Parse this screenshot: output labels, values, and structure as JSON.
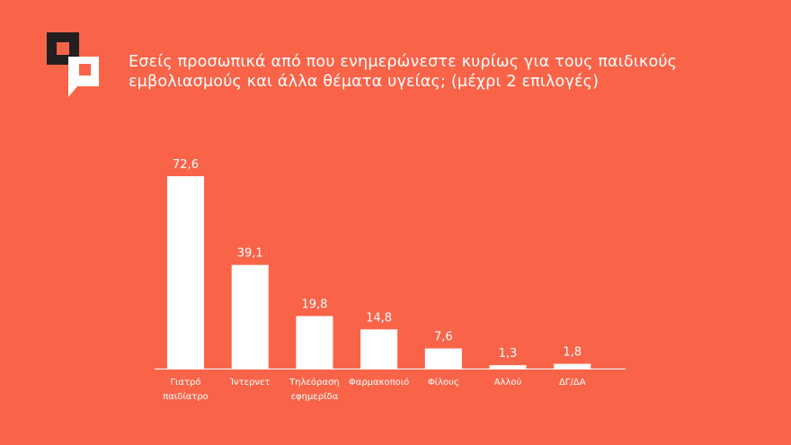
{
  "colors": {
    "background": "#f96449",
    "bar": "#ffffff",
    "text": "#ffffff",
    "logo_dark": "#231f20"
  },
  "logo": {
    "icon": "speech-bubble-squares-logo"
  },
  "chart_data": {
    "type": "bar",
    "title_lines": [
      "Εσείς προσωπικά από που ενημερώνεστε κυρίως για τους παιδικούς",
      "εμβολιασμούς και άλλα θέματα υγείας; (μέχρι 2 επιλογές)"
    ],
    "categories": [
      [
        "Γιατρό",
        "παιδίατρο"
      ],
      [
        "Ίντερνετ"
      ],
      [
        "Τηλεόραση",
        "εφημερίδα"
      ],
      [
        "Φαρμακοποιό"
      ],
      [
        "Φίλους"
      ],
      [
        "Αλλού"
      ],
      [
        "ΔΓ/ΔΑ"
      ]
    ],
    "values": [
      72.6,
      39.1,
      19.8,
      14.8,
      7.6,
      1.3,
      1.8
    ],
    "value_labels": [
      "72,6",
      "39,1",
      "19,8",
      "14,8",
      "7,6",
      "1,3",
      "1,8"
    ],
    "xlabel": "",
    "ylabel": "",
    "ylim": [
      0,
      72.6
    ],
    "grid": false,
    "legend": "none"
  }
}
